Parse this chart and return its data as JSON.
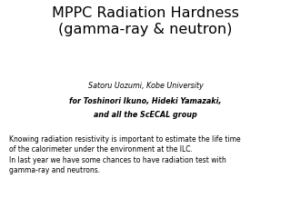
{
  "title_line1": "MPPC Radiation Hardness",
  "title_line2": "(gamma-ray & neutron)",
  "author_line1": "Satoru Uozumi, Kobe University",
  "author_line2": "for Toshinori Ikuno, Hideki Yamazaki,",
  "author_line3": "and all the ScECAL group",
  "body_line1": "Knowing radiation resistivity is important to estimate the life time",
  "body_line2": "of the calorimeter under the environment at the ILC.",
  "body_line3": "In last year we have some chances to have radiation test with",
  "body_line4": "gamma-ray and neutrons.",
  "background_color": "#ffffff",
  "title_color": "#000000",
  "author_color": "#000000",
  "body_color": "#000000",
  "title_fontsize": 11.5,
  "author_fontsize": 5.8,
  "body_fontsize": 5.5
}
